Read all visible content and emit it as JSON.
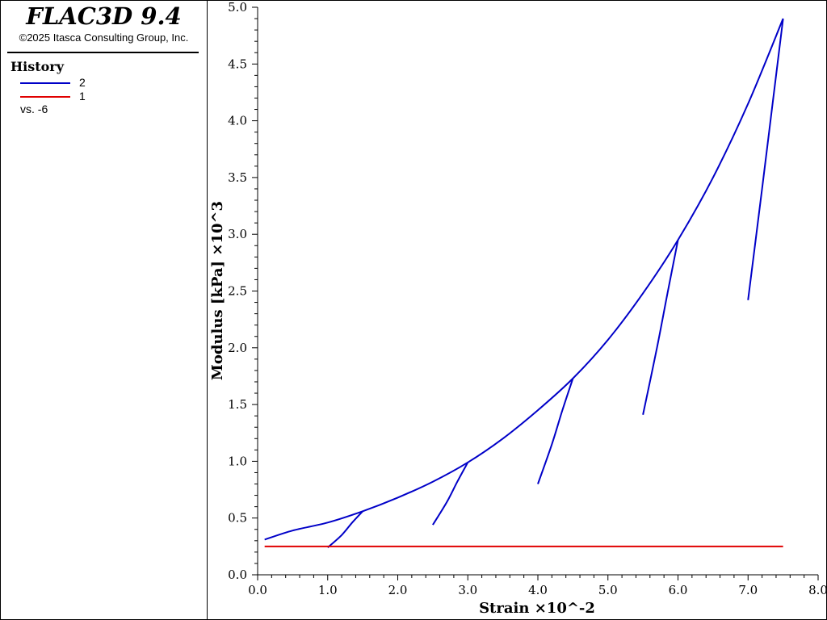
{
  "app": {
    "title": "FLAC3D 9.4",
    "copyright": "©2025 Itasca Consulting Group, Inc."
  },
  "legend": {
    "heading": "History",
    "entries": [
      {
        "label": "2",
        "color": "#0000c8"
      },
      {
        "label": "1",
        "color": "#e00000"
      }
    ],
    "vs_label": "vs. -6"
  },
  "chart_data": {
    "type": "line",
    "xlabel": "Strain ×10^-2",
    "ylabel": "Modulus [kPa] ×10^3",
    "xlim": [
      0,
      8
    ],
    "ylim": [
      0,
      5
    ],
    "x_ticks": [
      0,
      1,
      2,
      3,
      4,
      5,
      6,
      7,
      8
    ],
    "x_tick_labels": [
      "0.0",
      "1.0",
      "2.0",
      "3.0",
      "4.0",
      "5.0",
      "6.0",
      "7.0",
      "8.0"
    ],
    "y_ticks": [
      0,
      0.5,
      1,
      1.5,
      2,
      2.5,
      3,
      3.5,
      4,
      4.5,
      5
    ],
    "y_tick_labels": [
      "0.0",
      "0.5",
      "1.0",
      "1.5",
      "2.0",
      "2.5",
      "3.0",
      "3.5",
      "4.0",
      "4.5",
      "5.0"
    ],
    "grid": false,
    "series": [
      {
        "name": "2",
        "color": "#0000c8",
        "segments": [
          {
            "x": [
              0.1,
              0.5,
              1.0,
              1.5,
              2.0,
              2.5,
              3.0,
              3.5,
              4.0,
              4.5,
              5.0,
              5.5,
              6.0,
              6.5,
              7.0,
              7.5
            ],
            "y": [
              0.31,
              0.39,
              0.46,
              0.56,
              0.68,
              0.82,
              0.99,
              1.2,
              1.45,
              1.73,
              2.07,
              2.48,
              2.95,
              3.5,
              4.15,
              4.9
            ]
          },
          {
            "x": [
              1.0,
              1.2,
              1.35,
              1.5
            ],
            "y": [
              0.24,
              0.35,
              0.46,
              0.56
            ]
          },
          {
            "x": [
              2.5,
              2.7,
              2.85,
              3.0
            ],
            "y": [
              0.44,
              0.64,
              0.82,
              0.99
            ]
          },
          {
            "x": [
              4.0,
              4.2,
              4.35,
              4.5
            ],
            "y": [
              0.8,
              1.15,
              1.45,
              1.73
            ]
          },
          {
            "x": [
              5.5,
              5.7,
              5.85,
              6.0
            ],
            "y": [
              1.41,
              2.0,
              2.48,
              2.95
            ]
          },
          {
            "x": [
              7.0,
              7.2,
              7.35,
              7.5
            ],
            "y": [
              2.42,
              3.4,
              4.15,
              4.9
            ]
          }
        ]
      },
      {
        "name": "1",
        "color": "#e00000",
        "segments": [
          {
            "x": [
              0.1,
              7.5
            ],
            "y": [
              0.25,
              0.25
            ]
          }
        ]
      }
    ]
  }
}
